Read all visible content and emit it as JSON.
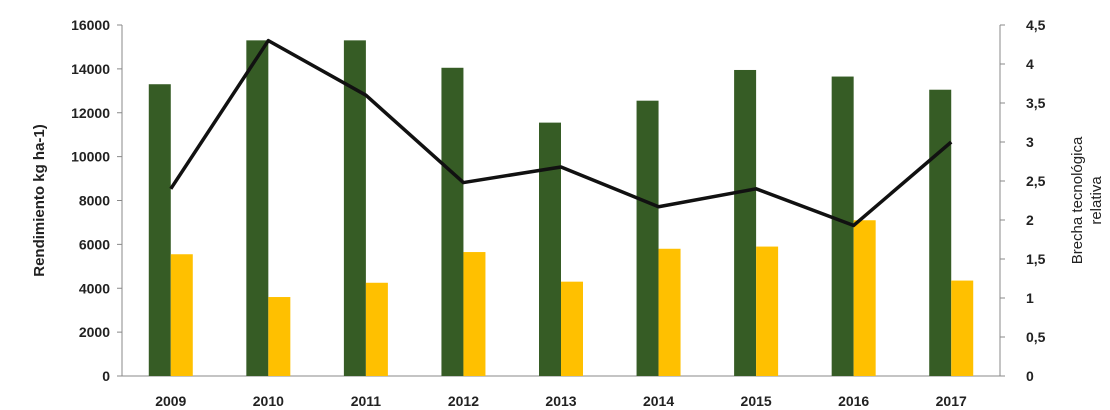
{
  "chart_data": {
    "type": "bar",
    "categories": [
      "2009",
      "2010",
      "2011",
      "2012",
      "2013",
      "2014",
      "2015",
      "2016",
      "2017"
    ],
    "series": [
      {
        "kind": "bar",
        "axis": "left",
        "color": "#365c25",
        "values": [
          13300,
          15300,
          15300,
          14050,
          11550,
          12550,
          13950,
          13650,
          13050
        ]
      },
      {
        "kind": "bar",
        "axis": "left",
        "color": "#ffc000",
        "values": [
          5550,
          3600,
          4250,
          5650,
          4300,
          5800,
          5900,
          7100,
          4350
        ]
      },
      {
        "kind": "line",
        "axis": "right",
        "color": "#111111",
        "values": [
          2.4,
          4.3,
          3.6,
          2.48,
          2.68,
          2.17,
          2.4,
          1.93,
          3.0
        ]
      }
    ],
    "ylabel": "Rendimiento kg ha-1)",
    "y2label_lines": [
      "Brecha tecnológica",
      "relativa"
    ],
    "ylim": [
      0,
      16000
    ],
    "yticks": [
      0,
      2000,
      4000,
      6000,
      8000,
      10000,
      12000,
      14000,
      16000
    ],
    "y2lim": [
      0,
      4.5
    ],
    "y2ticks": [
      "0",
      "0,5",
      "1",
      "1,5",
      "2",
      "2,5",
      "3",
      "3,5",
      "4",
      "4,5"
    ],
    "grid": false,
    "legend": "none"
  }
}
